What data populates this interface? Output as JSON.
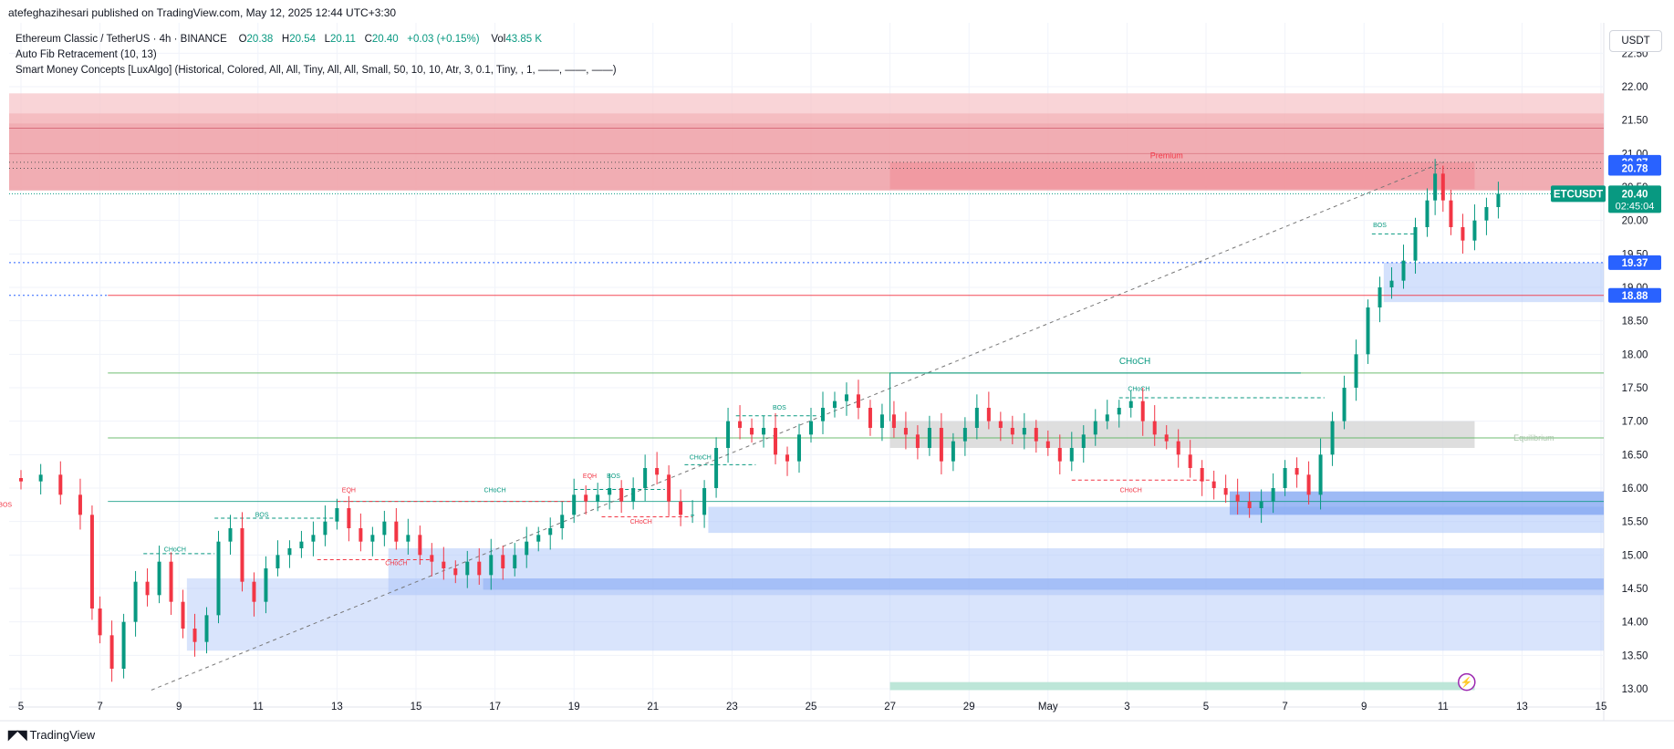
{
  "header": {
    "publish_line": "atefeghazihesari published on TradingView.com, May 12, 2025 12:44 UTC+3:30",
    "legend_title": "Ethereum Classic / TetherUS · 4h · BINANCE",
    "ohlc": {
      "o_label": "O",
      "o": "20.38",
      "h_label": "H",
      "h": "20.54",
      "l_label": "L",
      "l": "20.11",
      "c_label": "C",
      "c": "20.40",
      "change": "+0.03 (+0.15%)",
      "vol_label": "Vol",
      "vol": "43.85 K"
    },
    "indicator_1": "Auto Fib Retracement (10, 13)",
    "indicator_2": "Smart Money Concepts [LuxAlgo] (Historical, Colored, All, All, Tiny, All, All, Small, 50, 10, 10, Atr, 3, 0.1, Tiny, , 1, ——, ——, ——)"
  },
  "currency": "USDT",
  "footer": {
    "brand": "TradingView",
    "logo_icon": "tradingview-logo-icon"
  },
  "colors": {
    "up": "#089981",
    "down": "#f23645",
    "accent": "#2962ff",
    "premium": "#f7a8ad",
    "demand": "#aac4f9"
  },
  "chart_data": {
    "type": "candlestick",
    "symbol": "ETCUSDT",
    "timeframe": "4h",
    "x_tick_labels": [
      "5",
      "7",
      "9",
      "11",
      "13",
      "15",
      "17",
      "19",
      "21",
      "23",
      "25",
      "27",
      "29",
      "May",
      "3",
      "5",
      "7",
      "9",
      "11",
      "13",
      "15"
    ],
    "y_tick_labels": [
      "13.00",
      "13.50",
      "14.00",
      "14.50",
      "15.00",
      "15.50",
      "16.00",
      "16.50",
      "17.00",
      "17.50",
      "18.00",
      "18.50",
      "19.00",
      "19.50",
      "20.00",
      "20.50",
      "21.00",
      "21.50",
      "22.00",
      "22.50"
    ],
    "ylim": [
      13.0,
      22.6
    ],
    "price_labels": [
      {
        "value": "20.87",
        "price": 20.87,
        "color": "#2962ff"
      },
      {
        "value": "20.78",
        "price": 20.78,
        "color": "#2962ff"
      },
      {
        "value": "19.37",
        "price": 19.37,
        "color": "#2962ff"
      },
      {
        "value": "18.88",
        "price": 18.88,
        "color": "#2962ff"
      }
    ],
    "current_price": {
      "symbol": "ETCUSDT",
      "value": "20.40",
      "countdown": "02:45:04",
      "price": 20.4
    },
    "zone_labels": {
      "premium": "Premium",
      "equilibrium": "Equilibrium",
      "choch_main": "CHoCH"
    },
    "structure_labels": [
      {
        "text": "BOS",
        "day": 4.6,
        "price": 15.72,
        "color": "#f23645"
      },
      {
        "text": "CHoCH",
        "day": 8.9,
        "price": 15.05,
        "color": "#089981"
      },
      {
        "text": "BOS",
        "day": 11.1,
        "price": 15.57,
        "color": "#089981"
      },
      {
        "text": "EQH",
        "day": 13.3,
        "price": 15.94,
        "color": "#f23645"
      },
      {
        "text": "CHoCH",
        "day": 14.5,
        "price": 14.85,
        "color": "#f23645"
      },
      {
        "text": "CHoCH",
        "day": 17.0,
        "price": 15.94,
        "color": "#089981"
      },
      {
        "text": "EQH",
        "day": 19.4,
        "price": 16.15,
        "color": "#f23645"
      },
      {
        "text": "BOS",
        "day": 20.0,
        "price": 16.15,
        "color": "#089981"
      },
      {
        "text": "CHoCH",
        "day": 20.7,
        "price": 15.47,
        "color": "#f23645"
      },
      {
        "text": "CHoCH",
        "day": 22.2,
        "price": 16.43,
        "color": "#089981"
      },
      {
        "text": "BOS",
        "day": 24.2,
        "price": 17.17,
        "color": "#089981"
      },
      {
        "text": "CHoCH",
        "day": 33.1,
        "price": 15.94,
        "color": "#f23645"
      },
      {
        "text": "CHoCH",
        "day": 33.3,
        "price": 17.45,
        "color": "#089981"
      },
      {
        "text": "BOS",
        "day": 39.4,
        "price": 19.9,
        "color": "#089981"
      }
    ],
    "levels": [
      {
        "price": 17.72,
        "color": "#4caf50"
      },
      {
        "price": 16.75,
        "color": "#4caf50"
      },
      {
        "price": 15.78,
        "color": "#089981"
      },
      {
        "price": 18.88,
        "color": "#f23645"
      },
      {
        "price": 20.4,
        "color": "#089981"
      }
    ],
    "ohlc": [
      [
        20.38,
        20.54,
        20.11,
        20.4
      ]
    ]
  }
}
